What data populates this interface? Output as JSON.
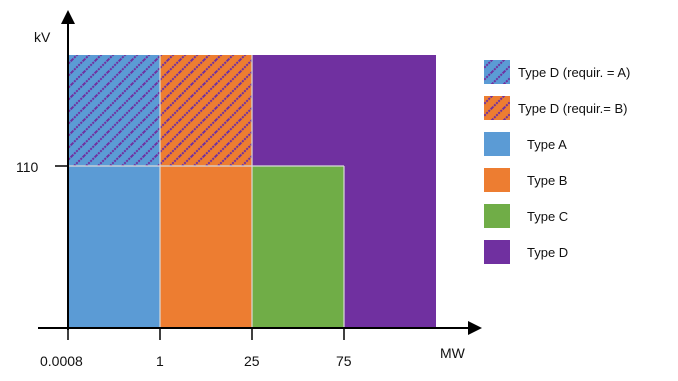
{
  "axes": {
    "y_label": "kV",
    "x_label": "MW",
    "y_ticks": [
      "110"
    ],
    "x_ticks": [
      "0.0008",
      "1",
      "25",
      "75"
    ]
  },
  "colors": {
    "type_a": "#5b9bd5",
    "type_b": "#ed7d31",
    "type_c": "#70ad47",
    "type_d": "#7030a0",
    "hatch": "#7030a0"
  },
  "regions": [
    {
      "type": "Type D (requir. = A)",
      "x_from": "0.0008",
      "x_to": "1",
      "kv": "≥ 110"
    },
    {
      "type": "Type D (requir. = B)",
      "x_from": "1",
      "x_to": "25",
      "kv": "≥ 110"
    },
    {
      "type": "Type A",
      "x_from": "0.0008",
      "x_to": "1",
      "kv": "< 110"
    },
    {
      "type": "Type B",
      "x_from": "1",
      "x_to": "25",
      "kv": "< 110"
    },
    {
      "type": "Type C",
      "x_from": "25",
      "x_to": "75",
      "kv": "< 110"
    },
    {
      "type": "Type D",
      "x_from": "25 (≥ 110 kV) / 75 (< 110 kV)",
      "x_to": "",
      "kv": "all"
    }
  ],
  "legend": [
    {
      "label": "Type D (requir. = A)",
      "swatch": "hatch-a"
    },
    {
      "label": "Type D (requir.= B)",
      "swatch": "hatch-b"
    },
    {
      "label": "Type A",
      "swatch": "type_a"
    },
    {
      "label": "Type B",
      "swatch": "type_b"
    },
    {
      "label": "Type C",
      "swatch": "type_c"
    },
    {
      "label": "Type D",
      "swatch": "type_d"
    }
  ]
}
